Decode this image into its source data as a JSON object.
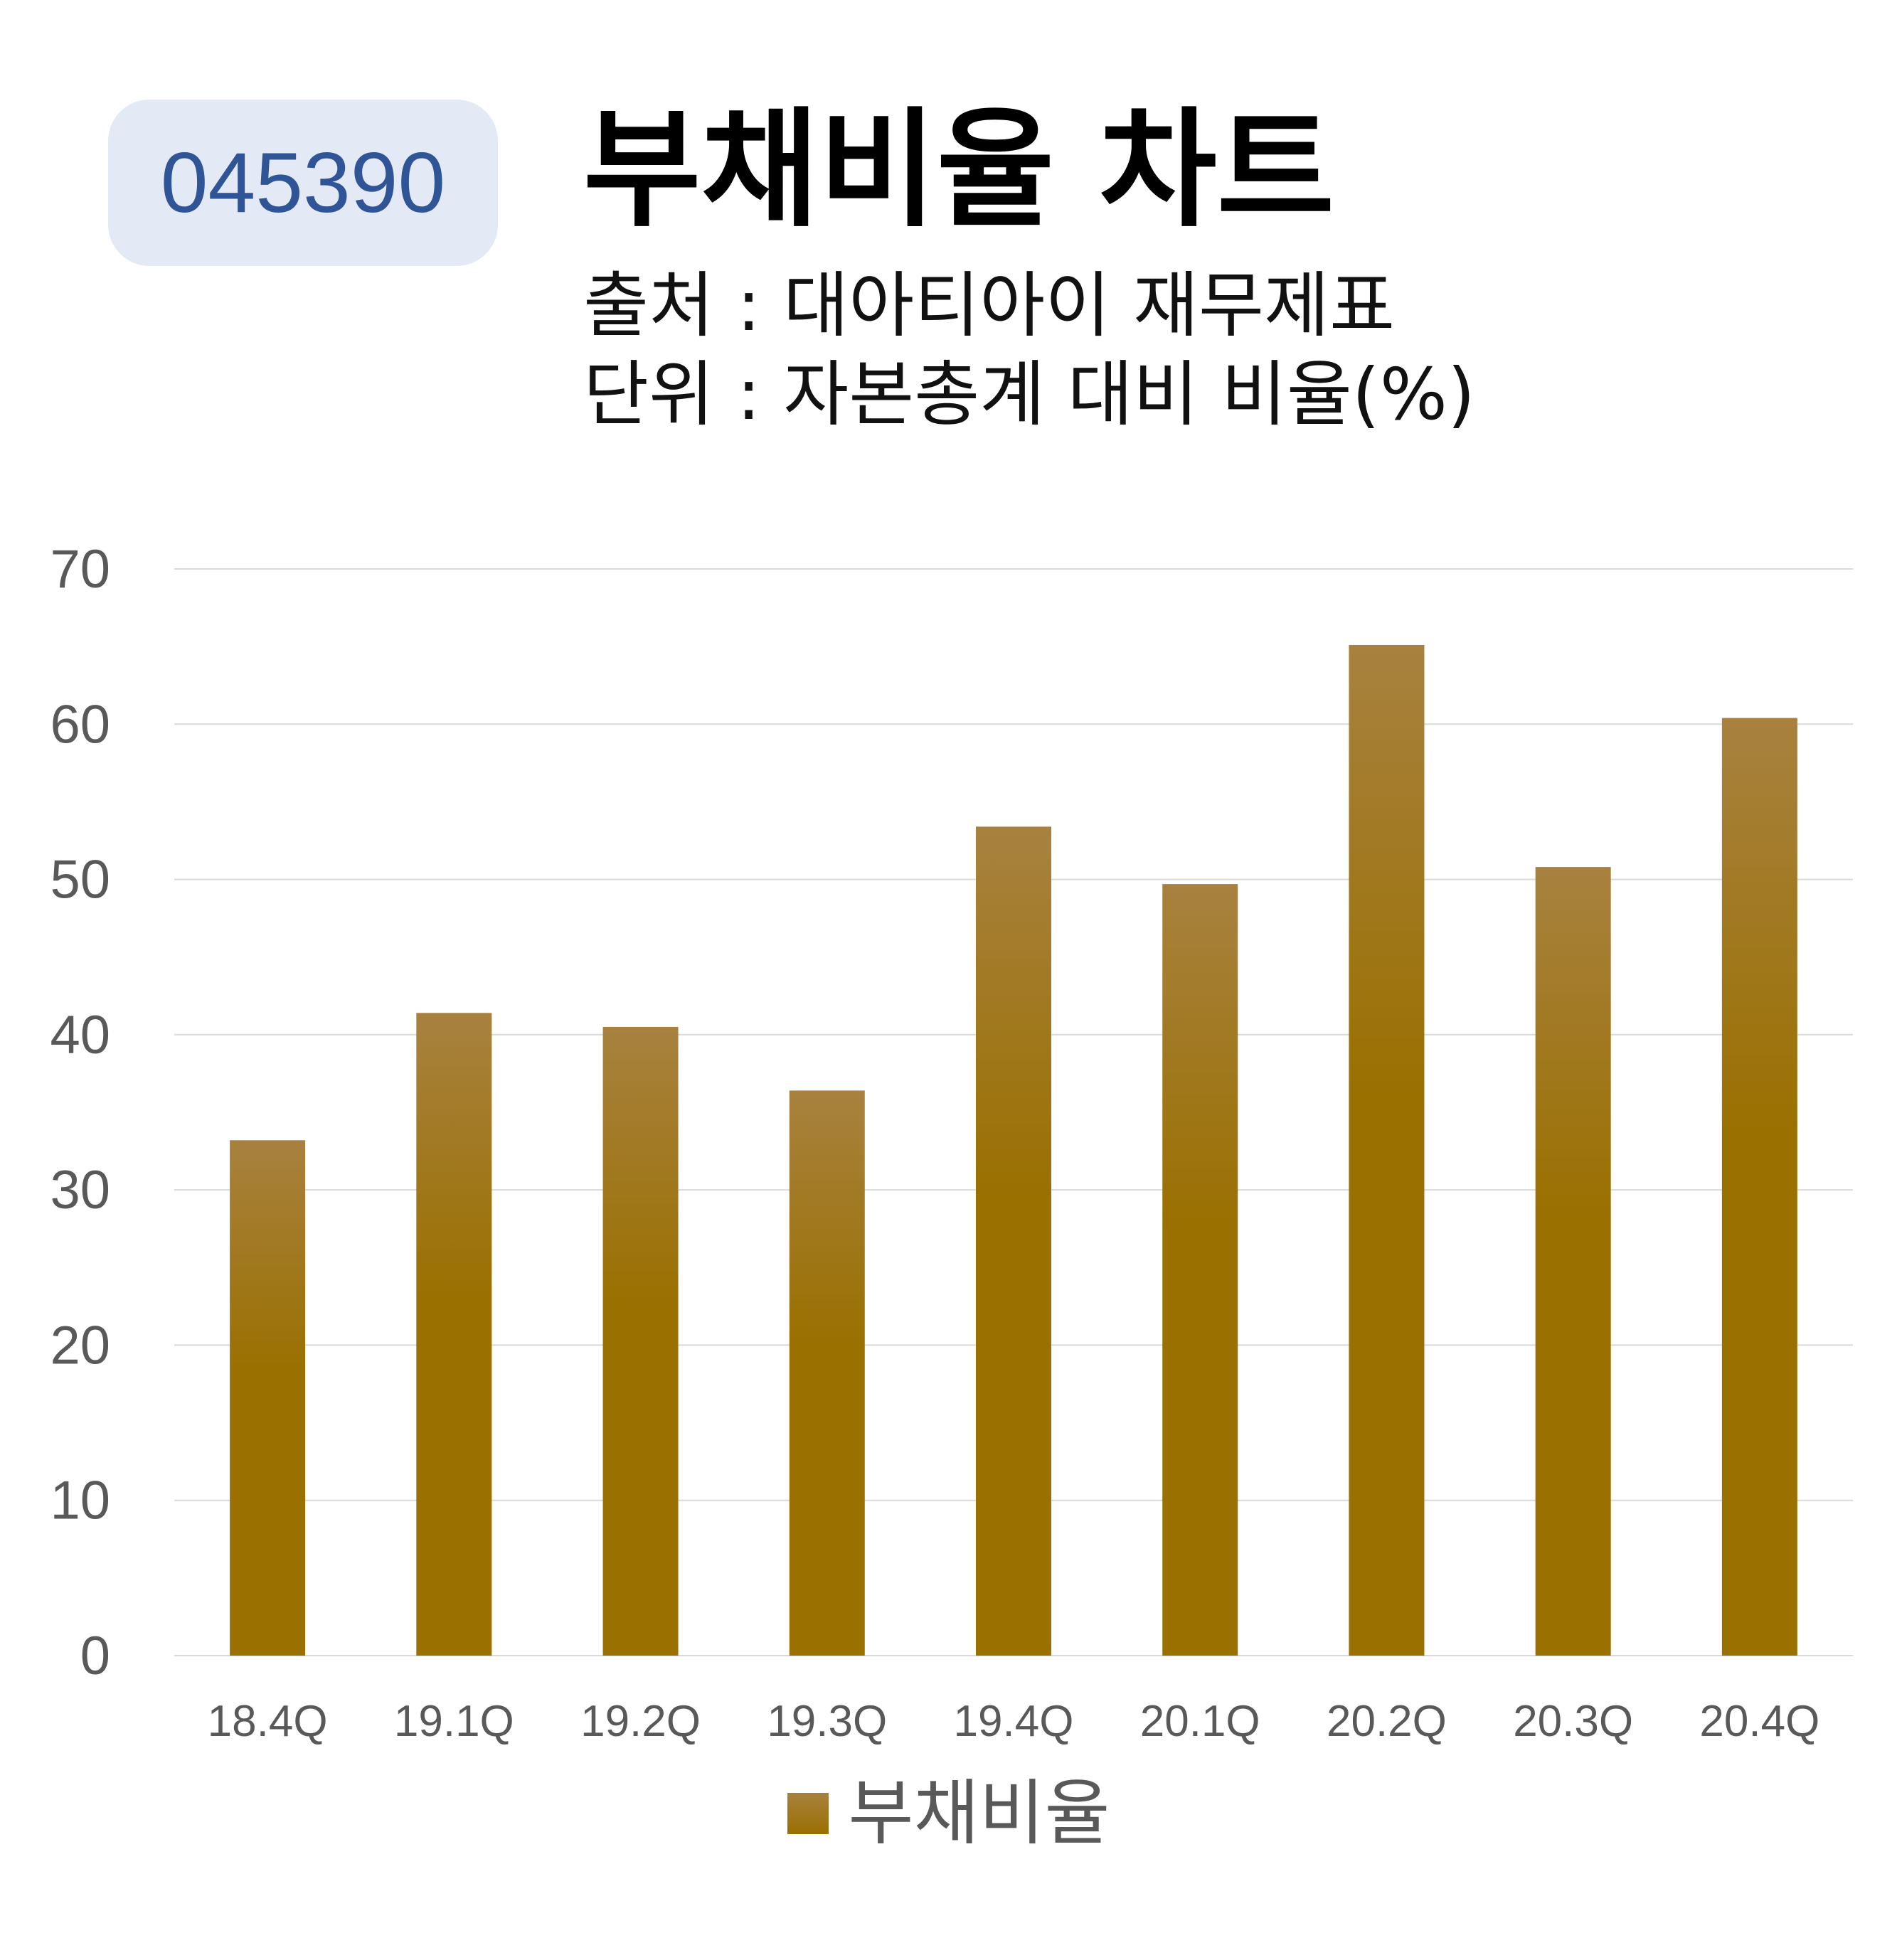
{
  "badge": {
    "code": "045390"
  },
  "header": {
    "title": "부채비율 차트",
    "source": "출처 : 대아티아이 재무제표",
    "unit": "단위 : 자본총계 대비 비율(%)"
  },
  "colors": {
    "bar_top": "#a8813f",
    "bar_bottom": "#9a7000",
    "badge_bg": "#e3e9f5",
    "badge_text": "#2f5597",
    "grid": "#d9d9d9",
    "axis_text": "#595959"
  },
  "chart_data": {
    "type": "bar",
    "categories": [
      "18.4Q",
      "19.1Q",
      "19.2Q",
      "19.3Q",
      "19.4Q",
      "20.1Q",
      "20.2Q",
      "20.3Q",
      "20.4Q"
    ],
    "series": [
      {
        "name": "부채비율",
        "values": [
          33.2,
          41.4,
          40.5,
          36.4,
          53.4,
          49.7,
          65.1,
          50.8,
          60.4
        ]
      }
    ],
    "yticks": [
      0,
      10,
      20,
      30,
      40,
      50,
      60,
      70
    ],
    "ylim": [
      0,
      70
    ],
    "grid": true,
    "legend": "bottom"
  }
}
